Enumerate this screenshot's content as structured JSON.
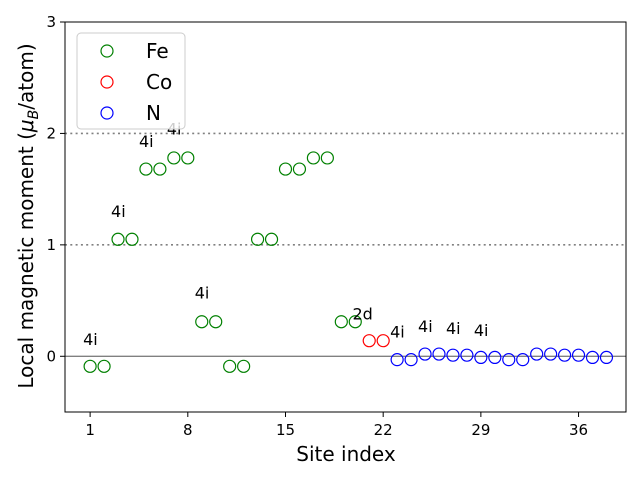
{
  "chart_data": {
    "type": "scatter",
    "xlabel": "Site index",
    "ylabel_prefix": "Local magnetic moment (",
    "ylabel_mu": "μ",
    "ylabel_sub": "B",
    "ylabel_suffix": "/atom)",
    "xlim": [
      -0.8,
      39.4
    ],
    "ylim": [
      -0.5,
      3.0
    ],
    "xticks": [
      1,
      8,
      15,
      22,
      29,
      36
    ],
    "yticks": [
      0,
      1,
      2,
      3
    ],
    "hlines": [
      {
        "y": 0,
        "style": "solid",
        "color": "#808080"
      },
      {
        "y": 1,
        "style": "dotted",
        "color": "#808080"
      },
      {
        "y": 2,
        "style": "dotted",
        "color": "#808080"
      }
    ],
    "legend_position": "top-left",
    "series": [
      {
        "name": "Fe",
        "color": "#008000",
        "x": [
          1,
          2,
          3,
          4,
          5,
          6,
          7,
          8,
          9,
          10,
          11,
          12,
          13,
          14,
          15,
          16,
          17,
          18,
          19,
          20
        ],
        "y": [
          -0.09,
          -0.09,
          1.05,
          1.05,
          1.68,
          1.68,
          1.78,
          1.78,
          0.31,
          0.31,
          -0.09,
          -0.09,
          1.05,
          1.05,
          1.68,
          1.68,
          1.78,
          1.78,
          0.31,
          0.31
        ]
      },
      {
        "name": "Co",
        "color": "#ff0000",
        "x": [
          21,
          22
        ],
        "y": [
          0.14,
          0.14
        ]
      },
      {
        "name": "N",
        "color": "#0000ff",
        "x": [
          23,
          24,
          25,
          26,
          27,
          28,
          29,
          30,
          31,
          32,
          33,
          34,
          35,
          36,
          37,
          38
        ],
        "y": [
          -0.03,
          -0.03,
          0.02,
          0.02,
          0.01,
          0.01,
          -0.01,
          -0.01,
          -0.03,
          -0.03,
          0.02,
          0.02,
          0.01,
          0.01,
          -0.01,
          -0.01
        ]
      }
    ],
    "annotations": [
      {
        "text": "4i",
        "x": 1,
        "y": 0.1
      },
      {
        "text": "4i",
        "x": 3,
        "y": 1.25
      },
      {
        "text": "4i",
        "x": 5,
        "y": 1.88
      },
      {
        "text": "4i",
        "x": 7,
        "y": 1.99
      },
      {
        "text": "4i",
        "x": 9,
        "y": 0.52
      },
      {
        "text": "2d",
        "x": 20.3,
        "y": 0.33
      },
      {
        "text": "4i",
        "x": 23,
        "y": 0.17
      },
      {
        "text": "4i",
        "x": 25,
        "y": 0.22
      },
      {
        "text": "4i",
        "x": 27,
        "y": 0.2
      },
      {
        "text": "4i",
        "x": 29,
        "y": 0.18
      }
    ]
  }
}
